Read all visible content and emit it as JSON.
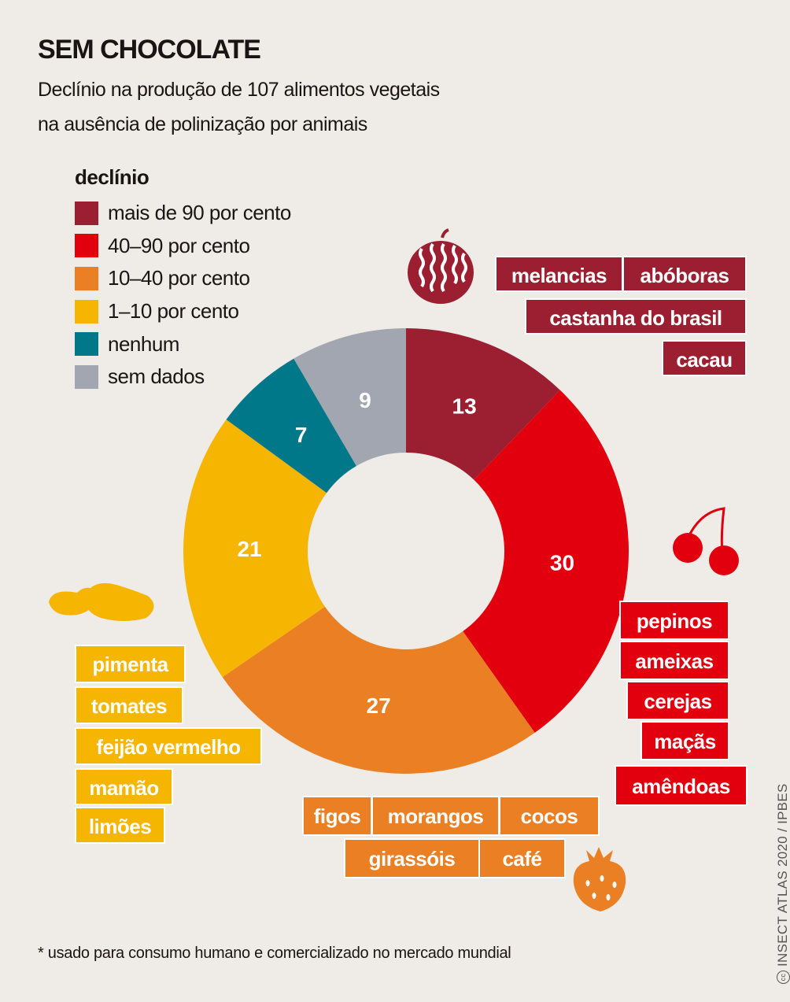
{
  "title": "SEM CHOCOLATE",
  "subtitle_line1": "Declínio na produção de 107 alimentos vegetais",
  "subtitle_line2": "na ausência de polinização por animais",
  "legend": {
    "title": "declínio",
    "items": [
      {
        "label": "mais de 90 por cento",
        "color": "#9b1f30"
      },
      {
        "label": "40–90 por cento",
        "color": "#e2000f"
      },
      {
        "label": "10–40 por cento",
        "color": "#eb7f24"
      },
      {
        "label": "1–10 por cento",
        "color": "#f6b500"
      },
      {
        "label": "nenhum",
        "color": "#00788a"
      },
      {
        "label": "sem dados",
        "color": "#a1a6b0"
      }
    ]
  },
  "chart_data": {
    "type": "pie",
    "donut": true,
    "total": 107,
    "categories": [
      "mais de 90 por cento",
      "40–90 por cento",
      "10–40 por cento",
      "1–10 por cento",
      "nenhum",
      "sem dados"
    ],
    "values": [
      13,
      30,
      27,
      21,
      7,
      9
    ],
    "colors": [
      "#9b1f30",
      "#e2000f",
      "#eb7f24",
      "#f6b500",
      "#00788a",
      "#a1a6b0"
    ],
    "data_labels": [
      "13",
      "30",
      "27",
      "21",
      "7",
      "9"
    ],
    "start": "top",
    "direction": "clockwise"
  },
  "examples": {
    "dark": [
      "melancias",
      "abóboras",
      "castanha do brasil",
      "cacau"
    ],
    "red": [
      "pepinos",
      "ameixas",
      "cerejas",
      "maçãs",
      "amêndoas"
    ],
    "orange": [
      "figos",
      "morangos",
      "cocos",
      "girassóis",
      "café"
    ],
    "yellow": [
      "pimenta",
      "tomates",
      "feijão vermelho",
      "mamão",
      "limões"
    ]
  },
  "icons": [
    "watermelon-icon",
    "cherries-icon",
    "beans-icon",
    "strawberry-icon"
  ],
  "footnote": "* usado para consumo humano e comercializado no mercado mundial",
  "credit": "INSECT ATLAS 2020 / IPBES",
  "license_symbol": "cc"
}
